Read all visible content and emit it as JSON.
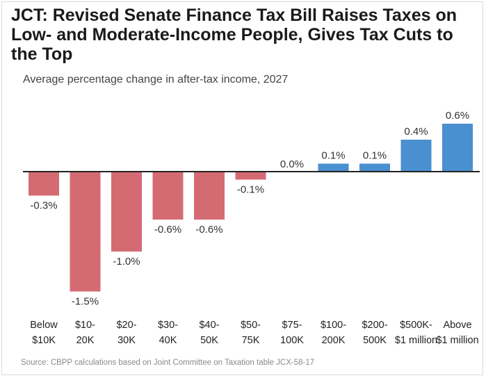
{
  "chart_data": {
    "type": "bar",
    "title": "JCT: Revised Senate Finance Tax Bill Raises Taxes on Low- and Moderate-Income People, Gives Tax Cuts to the Top",
    "subtitle": "Average percentage change in after-tax income, 2027",
    "source": "Source: CBPP calculations based on Joint Committee on Taxation table JCX-58-17",
    "categories": [
      [
        "Below",
        "$10K"
      ],
      [
        "$10-",
        "20K"
      ],
      [
        "$20-",
        "30K"
      ],
      [
        "$30-",
        "40K"
      ],
      [
        "$40-",
        "50K"
      ],
      [
        "$50-",
        "75K"
      ],
      [
        "$75-",
        "100K"
      ],
      [
        "$100-",
        "200K"
      ],
      [
        "$200-",
        "500K"
      ],
      [
        "$500K-",
        "$1 million"
      ],
      [
        "Above",
        "$1 million"
      ]
    ],
    "values": [
      -0.3,
      -1.5,
      -1.0,
      -0.6,
      -0.6,
      -0.1,
      0.0,
      0.1,
      0.1,
      0.4,
      0.6
    ],
    "value_labels": [
      "-0.3%",
      "-1.5%",
      "-1.0%",
      "-0.6%",
      "-0.6%",
      "-0.1%",
      "0.0%",
      "0.1%",
      "0.1%",
      "0.4%",
      "0.6%"
    ],
    "ylim": [
      -1.5,
      0.6
    ],
    "grid": false,
    "legend": "none",
    "colors": {
      "negative": "#d56b72",
      "positive": "#4a8fcf",
      "axis": "#222222"
    }
  }
}
